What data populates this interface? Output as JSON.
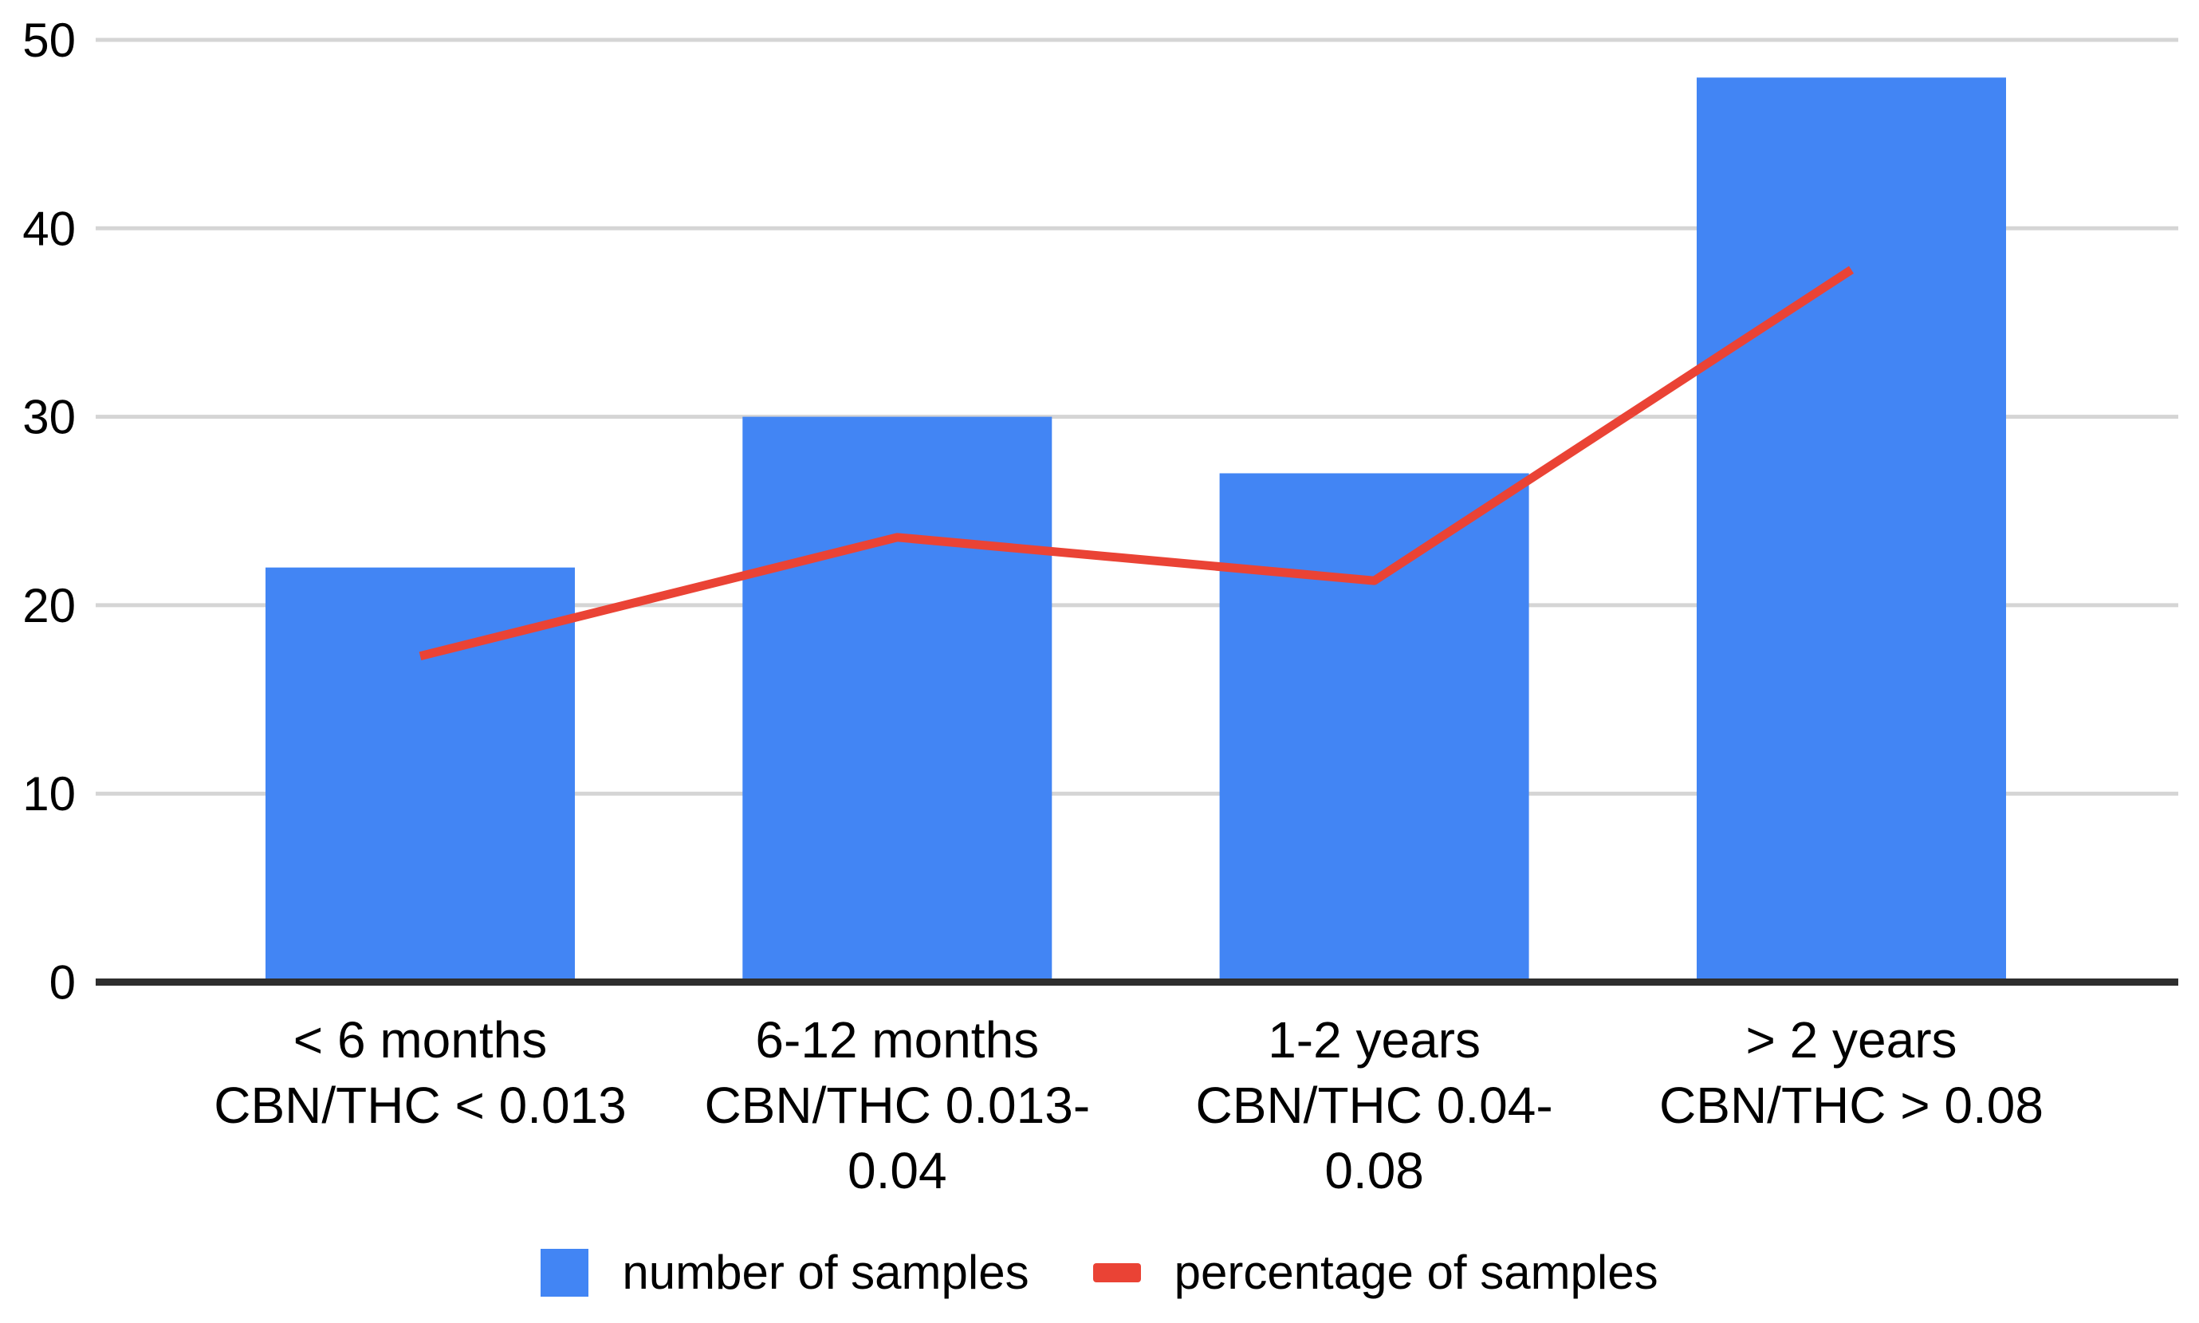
{
  "chart_data": {
    "type": "combo",
    "title": "",
    "xlabel": "",
    "ylabel": "",
    "categories": [
      [
        "< 6 months",
        "CBN/THC < 0.013"
      ],
      [
        "6-12 months",
        "CBN/THC  0.013-",
        "0.04"
      ],
      [
        "1-2 years",
        "CBN/THC 0.04-",
        "0.08"
      ],
      [
        "> 2 years",
        "CBN/THC > 0.08"
      ]
    ],
    "series": [
      {
        "name": "number of samples",
        "type": "bar",
        "color": "#4285F4",
        "values": [
          22,
          30,
          27,
          48
        ]
      },
      {
        "name": "percentage of samples",
        "type": "line",
        "color": "#EA4335",
        "values": [
          17.3,
          23.6,
          21.3,
          37.8
        ]
      }
    ],
    "y_axis": {
      "min": 0,
      "max": 50,
      "ticks": [
        0,
        10,
        20,
        30,
        40,
        50
      ],
      "tick_labels": [
        "0",
        "10",
        "20",
        "30",
        "40",
        "50"
      ]
    },
    "grid": true,
    "legend_position": "bottom",
    "colors": {
      "bar": "#4285F4",
      "line": "#EA4335",
      "gridline": "#d5d5d5",
      "axis_line": "#2e2e2e",
      "text": "#000000",
      "background": "#ffffff"
    }
  }
}
